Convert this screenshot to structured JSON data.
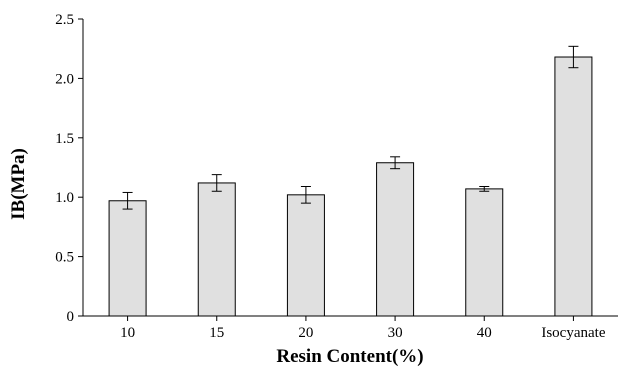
{
  "chart_data": {
    "type": "bar",
    "title": "",
    "xlabel": "Resin Content(%)",
    "ylabel": "IB(MPa)",
    "categories": [
      "10",
      "15",
      "20",
      "30",
      "40",
      "Isocyanate"
    ],
    "series": [
      {
        "values": [
          0.97,
          1.12,
          1.02,
          1.29,
          1.07,
          2.18
        ],
        "errors": [
          0.07,
          0.07,
          0.07,
          0.05,
          0.02,
          0.09
        ]
      }
    ],
    "ylim": [
      0,
      2.5
    ],
    "yticks": [
      0,
      0.5,
      1.0,
      1.5,
      2.0,
      2.5
    ],
    "ytick_labels": [
      "0",
      "0.5",
      "1.0",
      "1.5",
      "2.0",
      "2.5"
    ],
    "grid": false,
    "legend": "none",
    "colors": {
      "bar_fill": "#e0e0e0",
      "bar_stroke": "#000000",
      "axis": "#000000"
    }
  }
}
